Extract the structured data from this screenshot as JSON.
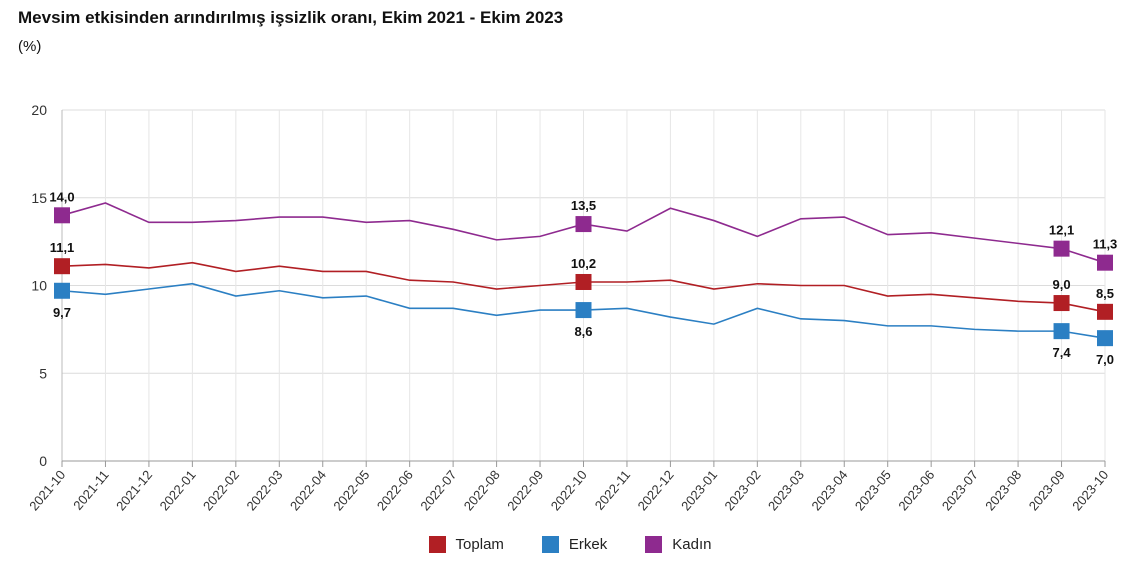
{
  "chart_data": {
    "type": "line",
    "title": "Mevsim etkisinden arındırılmış işsizlik oranı, Ekim 2021 - Ekim 2023",
    "unit": "(%)",
    "xlabel": "",
    "ylabel": "",
    "ylim": [
      0,
      20
    ],
    "yticks": [
      "0",
      "5",
      "10",
      "15",
      "20"
    ],
    "grid": true,
    "legend_position": "bottom",
    "categories": [
      "2021-10",
      "2021-11",
      "2021-12",
      "2022-01",
      "2022-02",
      "2022-03",
      "2022-04",
      "2022-05",
      "2022-06",
      "2022-07",
      "2022-08",
      "2022-09",
      "2022-10",
      "2022-11",
      "2022-12",
      "2023-01",
      "2023-02",
      "2023-03",
      "2023-04",
      "2023-05",
      "2023-06",
      "2023-07",
      "2023-08",
      "2023-09",
      "2023-10"
    ],
    "series": [
      {
        "name": "Toplam",
        "color": "#b11f24",
        "values": [
          11.1,
          11.2,
          11.0,
          11.3,
          10.8,
          11.1,
          10.8,
          10.8,
          10.3,
          10.2,
          9.8,
          10.0,
          10.2,
          10.2,
          10.3,
          9.8,
          10.1,
          10.0,
          10.0,
          9.4,
          9.5,
          9.3,
          9.1,
          9.0,
          8.5
        ],
        "marker_labels": [
          {
            "index": 0,
            "text": "11,1",
            "pos": "above"
          },
          {
            "index": 12,
            "text": "10,2",
            "pos": "above"
          },
          {
            "index": 23,
            "text": "9,0",
            "pos": "above"
          },
          {
            "index": 24,
            "text": "8,5",
            "pos": "above"
          }
        ]
      },
      {
        "name": "Erkek",
        "color": "#2b7fc3",
        "values": [
          9.7,
          9.5,
          9.8,
          10.1,
          9.4,
          9.7,
          9.3,
          9.4,
          8.7,
          8.7,
          8.3,
          8.6,
          8.6,
          8.7,
          8.2,
          7.8,
          8.7,
          8.1,
          8.0,
          7.7,
          7.7,
          7.5,
          7.4,
          7.4,
          7.0
        ],
        "marker_labels": [
          {
            "index": 0,
            "text": "9,7",
            "pos": "below"
          },
          {
            "index": 12,
            "text": "8,6",
            "pos": "below"
          },
          {
            "index": 23,
            "text": "7,4",
            "pos": "below"
          },
          {
            "index": 24,
            "text": "7,0",
            "pos": "below"
          }
        ]
      },
      {
        "name": "Kadın",
        "color": "#8e2a8f",
        "values": [
          14.0,
          14.7,
          13.6,
          13.6,
          13.7,
          13.9,
          13.9,
          13.6,
          13.7,
          13.2,
          12.6,
          12.8,
          13.5,
          13.1,
          14.4,
          13.7,
          12.8,
          13.8,
          13.9,
          12.9,
          13.0,
          12.7,
          12.4,
          12.1,
          11.3
        ],
        "marker_labels": [
          {
            "index": 0,
            "text": "14,0",
            "pos": "above"
          },
          {
            "index": 12,
            "text": "13,5",
            "pos": "above"
          },
          {
            "index": 23,
            "text": "12,1",
            "pos": "above"
          },
          {
            "index": 24,
            "text": "11,3",
            "pos": "above"
          }
        ]
      }
    ]
  }
}
